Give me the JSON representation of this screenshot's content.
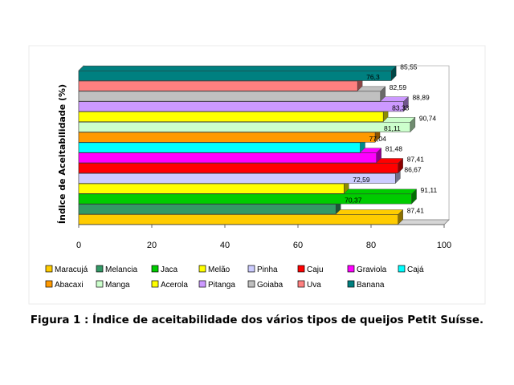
{
  "caption": "Figura 1 : Índice de aceitabilidade dos vários tipos de queijos Petit Suísse.",
  "chart_data": {
    "type": "bar",
    "orientation": "horizontal",
    "style": "3d",
    "ylabel": "Índice de Aceitabilidade (%)",
    "xlabel": "",
    "xlim": [
      0,
      100
    ],
    "ticks": [
      "0",
      "20",
      "40",
      "60",
      "80",
      "100"
    ],
    "grid": true,
    "legend_position": "bottom",
    "categories": [
      "Maracujá",
      "Melancia",
      "Jaca",
      "Melão",
      "Pinha",
      "Caju",
      "Graviola",
      "Cajá",
      "Abacaxi",
      "Manga",
      "Acerola",
      "Pitanga",
      "Goiaba",
      "Uva",
      "Banana"
    ],
    "values": [
      87.41,
      70.37,
      91.11,
      72.59,
      86.67,
      87.41,
      81.48,
      77.04,
      81.11,
      90.74,
      83.33,
      88.89,
      82.59,
      76.3,
      85.55
    ],
    "value_labels": [
      "87,41",
      "70,37",
      "91,11",
      "72,59",
      "86,67",
      "87,41",
      "81,48",
      "77,04",
      "81,11",
      "90,74",
      "83,33",
      "88,89",
      "82,59",
      "76,3",
      "85,55"
    ],
    "colors": [
      "#ffcc00",
      "#339966",
      "#00cc00",
      "#ffff00",
      "#ccccff",
      "#ff0000",
      "#ff00ff",
      "#00ffff",
      "#ff9900",
      "#ccffcc",
      "#ffff00",
      "#cc99ff",
      "#c0c0c0",
      "#ff8080",
      "#008080"
    ]
  }
}
